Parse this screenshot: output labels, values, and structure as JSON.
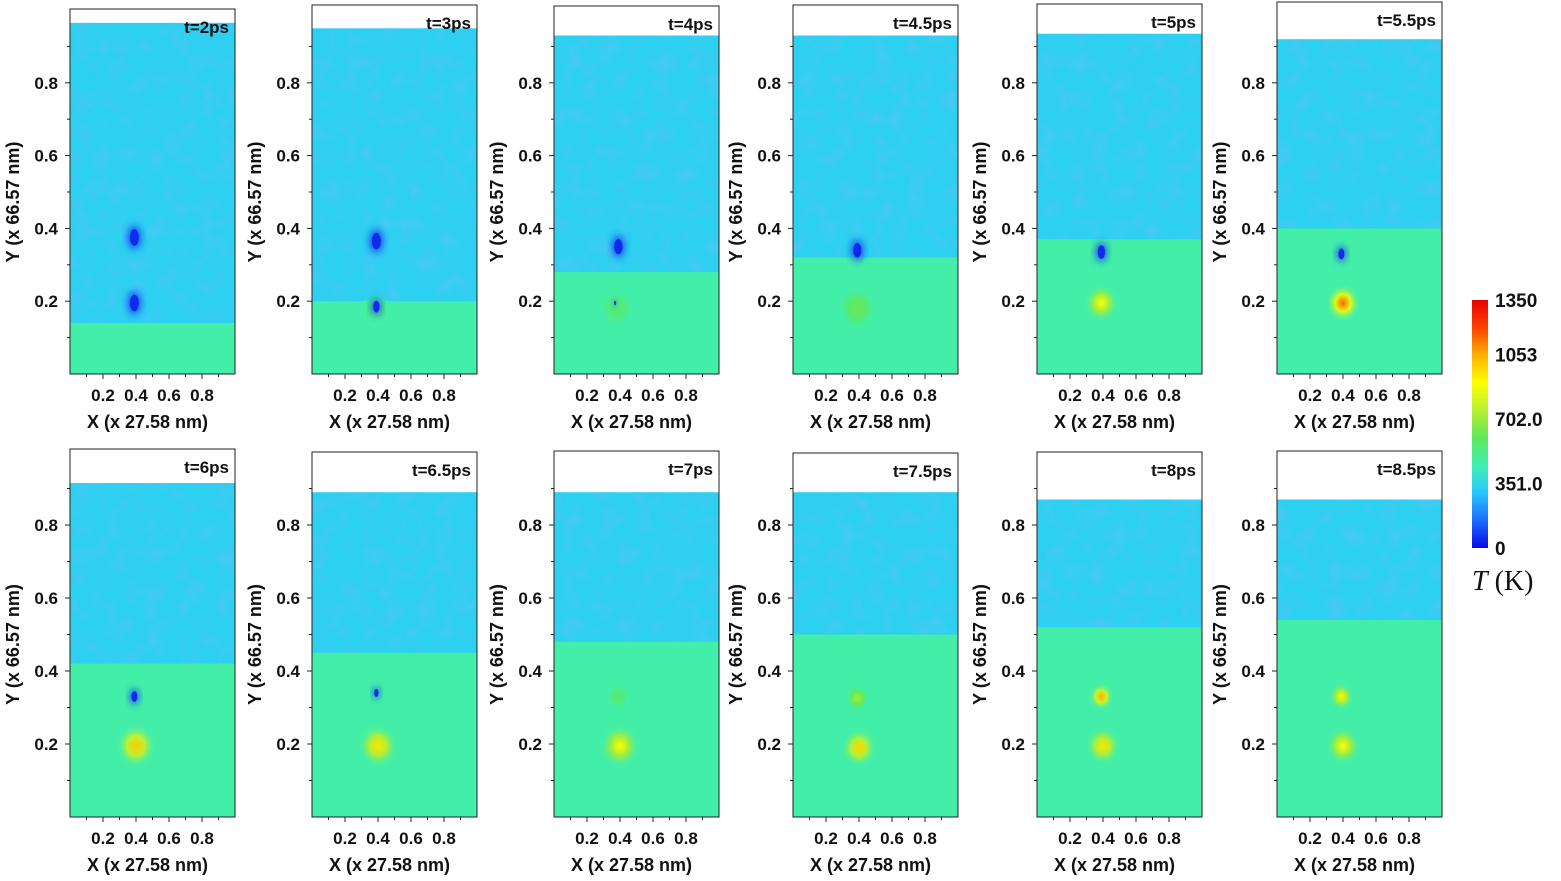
{
  "chart_data": {
    "type": "heatmap",
    "x_axis": {
      "label": "X (x 27.58 nm)",
      "ticks": [
        "0.2",
        "0.4",
        "0.6",
        "0.8"
      ],
      "range": [
        0.0,
        1.0
      ]
    },
    "y_axis": {
      "label": "Y (x 66.57 nm)",
      "ticks": [
        "0.2",
        "0.4",
        "0.6",
        "0.8"
      ],
      "range": [
        0.0,
        1.0
      ]
    },
    "colorbar": {
      "title": "T (K)",
      "tick_labels": [
        "1350",
        "1053",
        "702.0",
        "351.0",
        "0"
      ],
      "tick_values": [
        1350,
        1053,
        702,
        351,
        0
      ],
      "range": [
        0,
        1350
      ],
      "colors": [
        "#0a0ae6",
        "#1a6cff",
        "#28c8ff",
        "#3ff0b4",
        "#5ee85a",
        "#b8f032",
        "#ffff00",
        "#ffb000",
        "#ff4000",
        "#e60000"
      ]
    },
    "panels": [
      {
        "time": "t=2ps",
        "top": 0.965,
        "interface_y": 0.14,
        "voids": [
          {
            "x": 0.39,
            "y": 0.375,
            "r": 0.045,
            "T": 80
          },
          {
            "x": 0.39,
            "y": 0.195,
            "r": 0.045,
            "T": 80
          }
        ],
        "hotspots": []
      },
      {
        "time": "t=3ps",
        "top": 0.95,
        "interface_y": 0.2,
        "voids": [
          {
            "x": 0.39,
            "y": 0.365,
            "r": 0.045,
            "T": 80
          },
          {
            "x": 0.39,
            "y": 0.185,
            "r": 0.032,
            "T": 80
          }
        ],
        "hotspots": [
          {
            "x": 0.39,
            "y": 0.18,
            "r": 0.06,
            "T": 520
          }
        ]
      },
      {
        "time": "t=4ps",
        "top": 0.93,
        "interface_y": 0.28,
        "voids": [
          {
            "x": 0.39,
            "y": 0.35,
            "r": 0.042,
            "T": 80
          },
          {
            "x": 0.37,
            "y": 0.195,
            "r": 0.012,
            "T": 120
          }
        ],
        "hotspots": [
          {
            "x": 0.38,
            "y": 0.18,
            "r": 0.07,
            "T": 560
          }
        ]
      },
      {
        "time": "t=4.5ps",
        "top": 0.93,
        "interface_y": 0.32,
        "voids": [
          {
            "x": 0.39,
            "y": 0.34,
            "r": 0.04,
            "T": 80
          }
        ],
        "hotspots": [
          {
            "x": 0.39,
            "y": 0.18,
            "r": 0.08,
            "T": 620
          }
        ]
      },
      {
        "time": "t=5ps",
        "top": 0.935,
        "interface_y": 0.37,
        "voids": [
          {
            "x": 0.39,
            "y": 0.335,
            "r": 0.037,
            "T": 80
          }
        ],
        "hotspots": [
          {
            "x": 0.39,
            "y": 0.195,
            "r": 0.07,
            "T": 900
          }
        ]
      },
      {
        "time": "t=5.5ps",
        "top": 0.92,
        "interface_y": 0.4,
        "voids": [
          {
            "x": 0.39,
            "y": 0.33,
            "r": 0.03,
            "T": 80
          }
        ],
        "hotspots": [
          {
            "x": 0.4,
            "y": 0.195,
            "r": 0.07,
            "T": 1150
          }
        ]
      },
      {
        "time": "t=6ps",
        "top": 0.915,
        "interface_y": 0.42,
        "voids": [
          {
            "x": 0.39,
            "y": 0.33,
            "r": 0.03,
            "T": 80
          }
        ],
        "hotspots": [
          {
            "x": 0.4,
            "y": 0.195,
            "r": 0.08,
            "T": 1000
          }
        ]
      },
      {
        "time": "t=6.5ps",
        "top": 0.89,
        "interface_y": 0.45,
        "voids": [
          {
            "x": 0.39,
            "y": 0.34,
            "r": 0.022,
            "T": 80
          }
        ],
        "hotspots": [
          {
            "x": 0.4,
            "y": 0.195,
            "r": 0.08,
            "T": 950
          }
        ]
      },
      {
        "time": "t=7ps",
        "top": 0.89,
        "interface_y": 0.48,
        "voids": [],
        "hotspots": [
          {
            "x": 0.4,
            "y": 0.195,
            "r": 0.08,
            "T": 900
          },
          {
            "x": 0.39,
            "y": 0.33,
            "r": 0.05,
            "T": 560
          }
        ]
      },
      {
        "time": "t=7.5ps",
        "top": 0.89,
        "interface_y": 0.5,
        "voids": [],
        "hotspots": [
          {
            "x": 0.4,
            "y": 0.19,
            "r": 0.07,
            "T": 980
          },
          {
            "x": 0.39,
            "y": 0.325,
            "r": 0.05,
            "T": 720
          }
        ]
      },
      {
        "time": "t=8ps",
        "top": 0.87,
        "interface_y": 0.52,
        "voids": [],
        "hotspots": [
          {
            "x": 0.4,
            "y": 0.195,
            "r": 0.07,
            "T": 950
          },
          {
            "x": 0.39,
            "y": 0.33,
            "r": 0.05,
            "T": 1050
          }
        ]
      },
      {
        "time": "t=8.5ps",
        "top": 0.87,
        "interface_y": 0.54,
        "voids": [],
        "hotspots": [
          {
            "x": 0.4,
            "y": 0.195,
            "r": 0.07,
            "T": 900
          },
          {
            "x": 0.39,
            "y": 0.33,
            "r": 0.05,
            "T": 920
          }
        ]
      }
    ]
  }
}
